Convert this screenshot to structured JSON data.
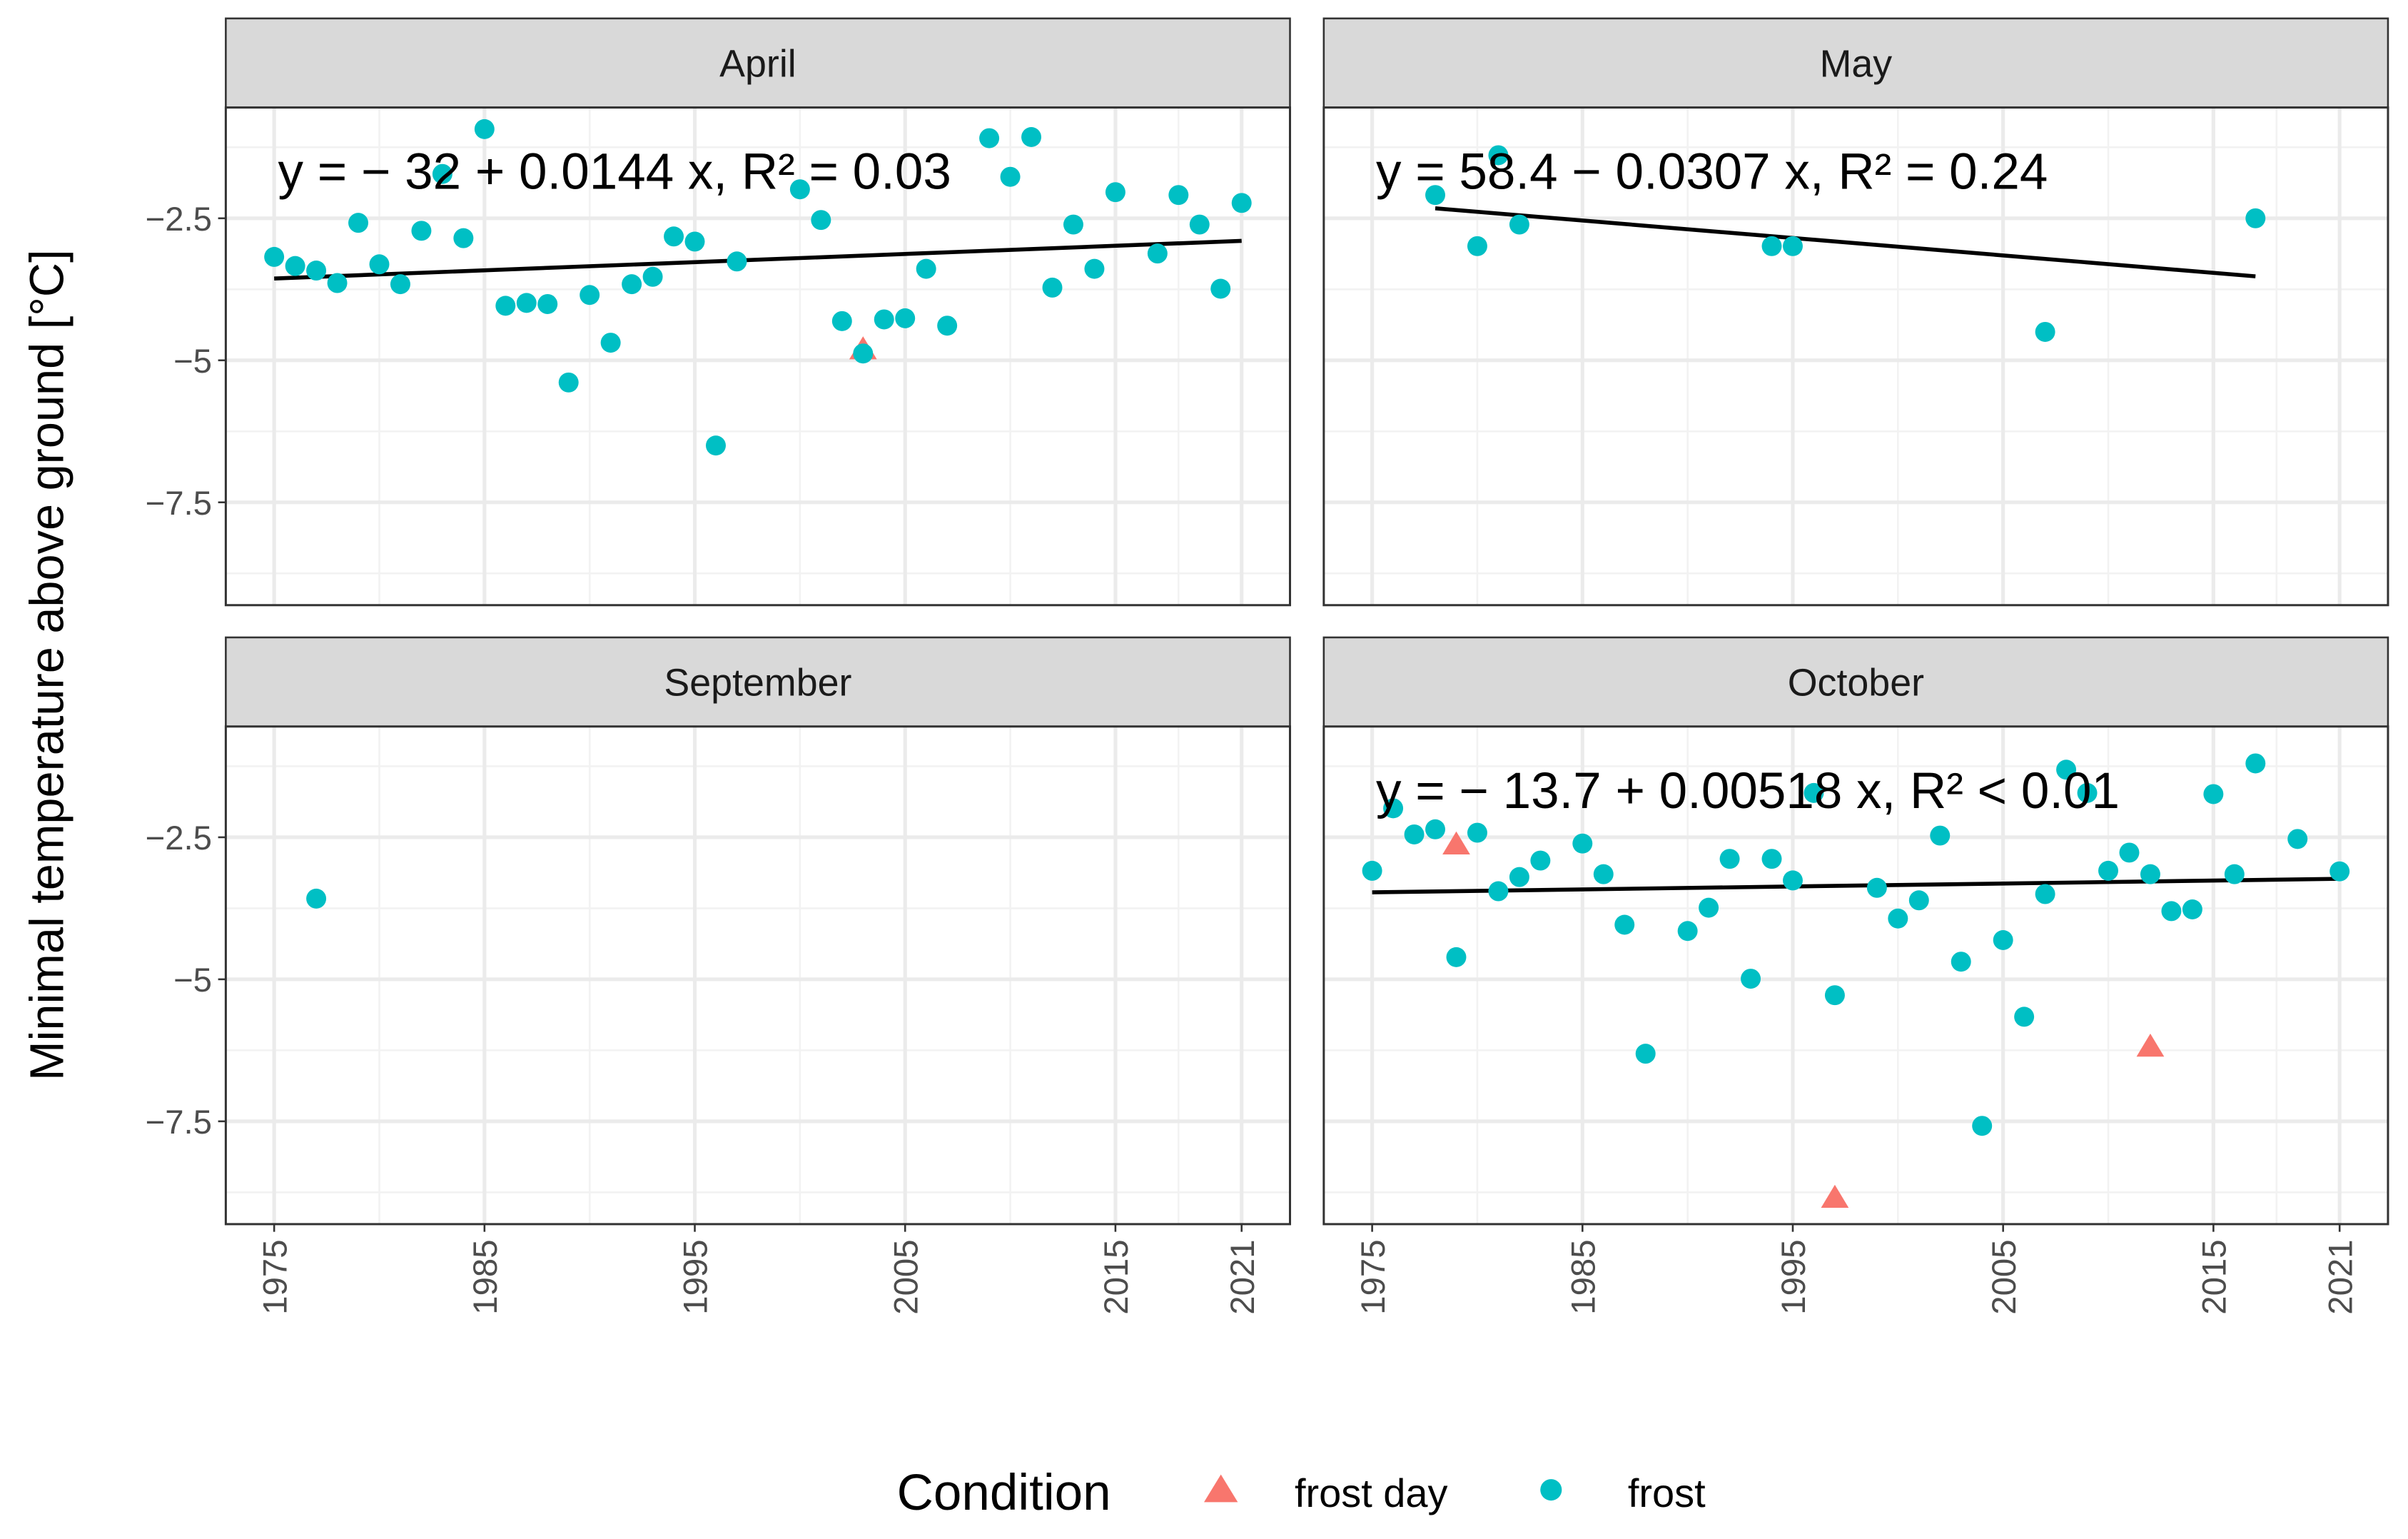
{
  "chart_data": {
    "type": "scatter",
    "ylabel": "Minimal temperature above ground [°C]",
    "xlabel": "",
    "xlim": [
      1972.7,
      2023.3
    ],
    "ylim": [
      -9.31,
      -0.55
    ],
    "x_ticks": [
      "1975",
      "1985",
      "1995",
      "2005",
      "2015",
      "2021"
    ],
    "x_tick_values": [
      1975,
      1985,
      1995,
      2005,
      2015,
      2021
    ],
    "y_ticks": [
      "-2.5",
      "-5",
      "-7.5"
    ],
    "y_tick_values": [
      -2.5,
      -5,
      -7.5
    ],
    "grid": true,
    "legend": {
      "title": "Condition",
      "placement": "bottom",
      "entries": [
        {
          "label": "frost day",
          "shape": "triangle",
          "color": "#F8766D"
        },
        {
          "label": "frost",
          "shape": "circle",
          "color": "#00BFC4"
        }
      ]
    },
    "panels": [
      {
        "title": "April",
        "equation": "y = − 32 + 0.0144 x,  R² = 0.03",
        "fit": {
          "intercept": -32,
          "slope": 0.0144
        },
        "points": [
          [
            1975,
            -3.18,
            "frost"
          ],
          [
            1976,
            -3.34,
            "frost"
          ],
          [
            1977,
            -3.42,
            "frost"
          ],
          [
            1978,
            -3.64,
            "frost"
          ],
          [
            1979,
            -2.58,
            "frost"
          ],
          [
            1980,
            -3.31,
            "frost"
          ],
          [
            1981,
            -3.66,
            "frost"
          ],
          [
            1982,
            -2.72,
            "frost"
          ],
          [
            1983,
            -1.72,
            "frost"
          ],
          [
            1984,
            -2.85,
            "frost"
          ],
          [
            1985,
            -0.93,
            "frost"
          ],
          [
            1986,
            -4.04,
            "frost"
          ],
          [
            1987,
            -3.99,
            "frost"
          ],
          [
            1988,
            -4.01,
            "frost"
          ],
          [
            1989,
            -5.39,
            "frost"
          ],
          [
            1990,
            -3.85,
            "frost"
          ],
          [
            1991,
            -4.69,
            "frost"
          ],
          [
            1992,
            -3.66,
            "frost"
          ],
          [
            1993,
            -3.53,
            "frost"
          ],
          [
            1994,
            -2.82,
            "frost"
          ],
          [
            1995,
            -2.91,
            "frost"
          ],
          [
            1996,
            -6.5,
            "frost"
          ],
          [
            1997,
            -3.26,
            "frost"
          ],
          [
            2000,
            -1.99,
            "frost"
          ],
          [
            2001,
            -2.53,
            "frost"
          ],
          [
            2002,
            -4.31,
            "frost"
          ],
          [
            2003,
            -4.82,
            "frost day"
          ],
          [
            2003,
            -4.88,
            "frost"
          ],
          [
            2004,
            -4.28,
            "frost"
          ],
          [
            2005,
            -4.26,
            "frost"
          ],
          [
            2006,
            -3.39,
            "frost"
          ],
          [
            2007,
            -4.39,
            "frost"
          ],
          [
            2009,
            -1.09,
            "frost"
          ],
          [
            2010,
            -1.77,
            "frost"
          ],
          [
            2011,
            -1.07,
            "frost"
          ],
          [
            2012,
            -3.72,
            "frost"
          ],
          [
            2013,
            -2.61,
            "frost"
          ],
          [
            2014,
            -3.39,
            "frost"
          ],
          [
            2015,
            -2.04,
            "frost"
          ],
          [
            2017,
            -3.12,
            "frost"
          ],
          [
            2018,
            -2.09,
            "frost"
          ],
          [
            2019,
            -2.61,
            "frost"
          ],
          [
            2020,
            -3.74,
            "frost"
          ],
          [
            2021,
            -2.23,
            "frost"
          ]
        ]
      },
      {
        "title": "May",
        "equation": "y = 58.4 − 0.0307 x,  R² = 0.24",
        "fit": {
          "intercept": 58.4,
          "slope": -0.0307
        },
        "points": [
          [
            1978,
            -2.09,
            "frost"
          ],
          [
            1980,
            -2.99,
            "frost"
          ],
          [
            1981,
            -1.39,
            "frost"
          ],
          [
            1982,
            -2.61,
            "frost"
          ],
          [
            1994,
            -2.99,
            "frost"
          ],
          [
            1995,
            -2.99,
            "frost"
          ],
          [
            2007,
            -4.5,
            "frost"
          ],
          [
            2017,
            -2.5,
            "frost"
          ]
        ]
      },
      {
        "title": "September",
        "equation": "",
        "fit": null,
        "points": [
          [
            1977,
            -3.58,
            "frost"
          ]
        ]
      },
      {
        "title": "October",
        "equation": "y = − 13.7 + 0.00518 x,  R² < 0.01",
        "fit": {
          "intercept": -13.7,
          "slope": 0.00518
        },
        "points": [
          [
            1975,
            -3.09,
            "frost"
          ],
          [
            1976,
            -1.99,
            "frost"
          ],
          [
            1977,
            -2.45,
            "frost"
          ],
          [
            1978,
            -2.36,
            "frost"
          ],
          [
            1979,
            -2.64,
            "frost day"
          ],
          [
            1979,
            -4.61,
            "frost"
          ],
          [
            1980,
            -2.42,
            "frost"
          ],
          [
            1981,
            -3.45,
            "frost"
          ],
          [
            1982,
            -3.2,
            "frost"
          ],
          [
            1983,
            -2.91,
            "frost"
          ],
          [
            1985,
            -2.61,
            "frost"
          ],
          [
            1986,
            -3.15,
            "frost"
          ],
          [
            1987,
            -4.04,
            "frost"
          ],
          [
            1988,
            -6.31,
            "frost"
          ],
          [
            1990,
            -4.15,
            "frost"
          ],
          [
            1991,
            -3.74,
            "frost"
          ],
          [
            1992,
            -2.88,
            "frost"
          ],
          [
            1993,
            -4.99,
            "frost"
          ],
          [
            1994,
            -2.88,
            "frost"
          ],
          [
            1995,
            -3.26,
            "frost"
          ],
          [
            1996,
            -1.72,
            "frost"
          ],
          [
            1997,
            -5.28,
            "frost"
          ],
          [
            1997,
            -8.86,
            "frost day"
          ],
          [
            1999,
            -3.39,
            "frost"
          ],
          [
            2000,
            -3.93,
            "frost"
          ],
          [
            2001,
            -3.61,
            "frost"
          ],
          [
            2002,
            -2.47,
            "frost"
          ],
          [
            2003,
            -4.69,
            "frost"
          ],
          [
            2004,
            -7.58,
            "frost"
          ],
          [
            2005,
            -4.31,
            "frost"
          ],
          [
            2006,
            -5.66,
            "frost"
          ],
          [
            2007,
            -3.5,
            "frost"
          ],
          [
            2008,
            -1.31,
            "frost"
          ],
          [
            2009,
            -1.72,
            "frost"
          ],
          [
            2010,
            -3.09,
            "frost"
          ],
          [
            2011,
            -2.77,
            "frost"
          ],
          [
            2012,
            -3.15,
            "frost"
          ],
          [
            2012,
            -6.2,
            "frost day"
          ],
          [
            2013,
            -3.8,
            "frost"
          ],
          [
            2014,
            -3.77,
            "frost"
          ],
          [
            2015,
            -1.74,
            "frost"
          ],
          [
            2016,
            -3.15,
            "frost"
          ],
          [
            2017,
            -1.2,
            "frost"
          ],
          [
            2019,
            -2.53,
            "frost"
          ],
          [
            2021,
            -3.1,
            "frost"
          ]
        ]
      }
    ]
  }
}
